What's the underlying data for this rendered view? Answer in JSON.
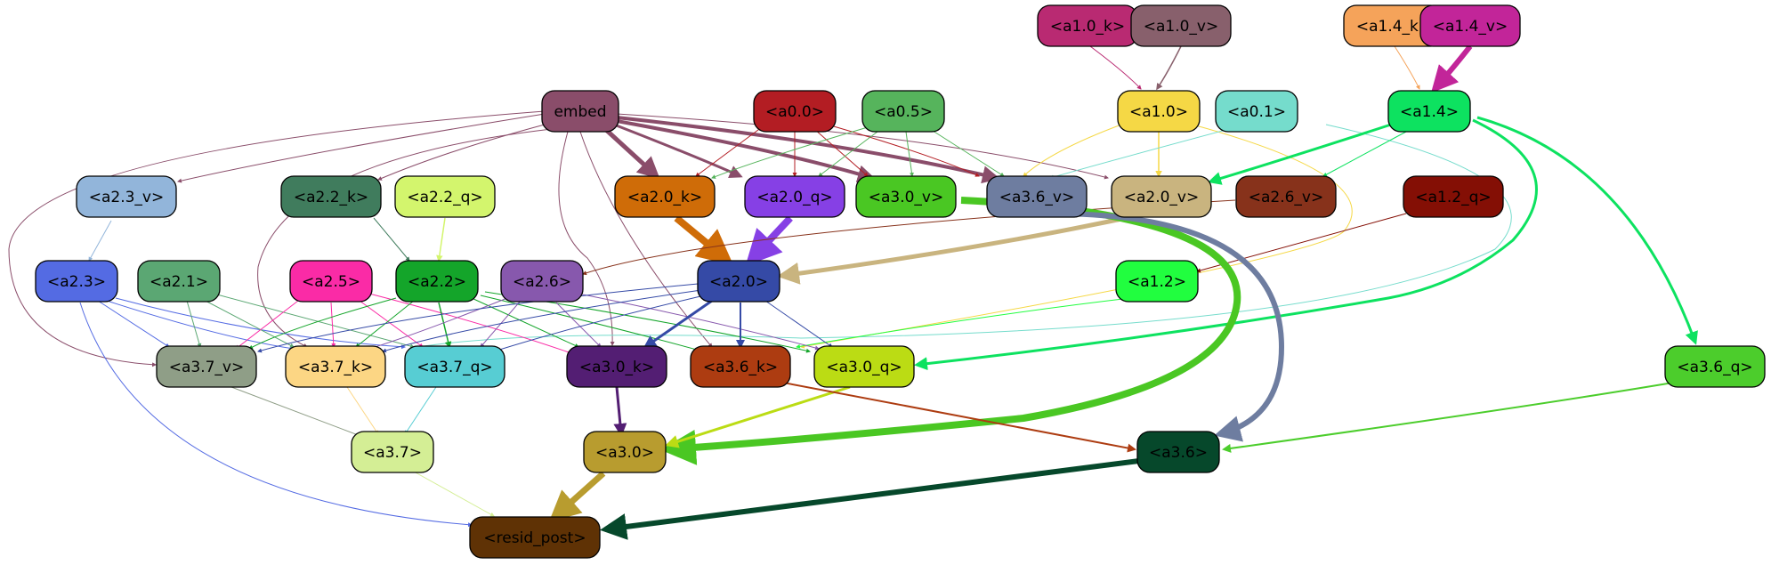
{
  "title": "",
  "nodes": [
    {
      "id": "a1_0_k",
      "label": "<a1.0_k>",
      "color": "#b92a72"
    },
    {
      "id": "a1_0_v",
      "label": "<a1.0_v>",
      "color": "#88606c"
    },
    {
      "id": "a1_4_k",
      "label": "<a1.4_k>",
      "color": "#f5a35a"
    },
    {
      "id": "a1_4_v",
      "label": "<a1.4_v>",
      "color": "#c22599"
    },
    {
      "id": "embed",
      "label": "embed",
      "color": "#8a4d6a"
    },
    {
      "id": "a0_0",
      "label": "<a0.0>",
      "color": "#b31d23"
    },
    {
      "id": "a0_5",
      "label": "<a0.5>",
      "color": "#56b45c"
    },
    {
      "id": "a1_0",
      "label": "<a1.0>",
      "color": "#f5d845"
    },
    {
      "id": "a0_1",
      "label": "<a0.1>",
      "color": "#75dccc"
    },
    {
      "id": "a1_4",
      "label": "<a1.4>",
      "color": "#0de260"
    },
    {
      "id": "a2_3_v",
      "label": "<a2.3_v>",
      "color": "#92b5da"
    },
    {
      "id": "a2_2_k",
      "label": "<a2.2_k>",
      "color": "#407c5d"
    },
    {
      "id": "a2_2_q",
      "label": "<a2.2_q>",
      "color": "#d3f56d"
    },
    {
      "id": "a2_0_k",
      "label": "<a2.0_k>",
      "color": "#cf6c08"
    },
    {
      "id": "a2_0_q",
      "label": "<a2.0_q>",
      "color": "#8640e5"
    },
    {
      "id": "a3_0_v",
      "label": "<a3.0_v>",
      "color": "#4ac723"
    },
    {
      "id": "a3_6_v",
      "label": "<a3.6_v>",
      "color": "#6e7da0"
    },
    {
      "id": "a2_0_v",
      "label": "<a2.0_v>",
      "color": "#c9b47f"
    },
    {
      "id": "a2_6_v",
      "label": "<a2.6_v>",
      "color": "#87321b"
    },
    {
      "id": "a1_2_q",
      "label": "<a1.2_q>",
      "color": "#840f05"
    },
    {
      "id": "a2_3",
      "label": "<a2.3>",
      "color": "#546be3"
    },
    {
      "id": "a2_1",
      "label": "<a2.1>",
      "color": "#5ba773"
    },
    {
      "id": "a2_5",
      "label": "<a2.5>",
      "color": "#fa2ba6"
    },
    {
      "id": "a2_2",
      "label": "<a2.2>",
      "color": "#14a52a"
    },
    {
      "id": "a2_6",
      "label": "<a2.6>",
      "color": "#8758ad"
    },
    {
      "id": "a2_0",
      "label": "<a2.0>",
      "color": "#354aa6"
    },
    {
      "id": "a1_2",
      "label": "<a1.2>",
      "color": "#21fe3f"
    },
    {
      "id": "a3_7_v",
      "label": "<a3.7_v>",
      "color": "#8f9e87"
    },
    {
      "id": "a3_7_k",
      "label": "<a3.7_k>",
      "color": "#fcd684"
    },
    {
      "id": "a3_7_q",
      "label": "<a3.7_q>",
      "color": "#57cdd3"
    },
    {
      "id": "a3_0_k",
      "label": "<a3.0_k>",
      "color": "#531e73"
    },
    {
      "id": "a3_6_k",
      "label": "<a3.6_k>",
      "color": "#ad3c11"
    },
    {
      "id": "a3_0_q",
      "label": "<a3.0_q>",
      "color": "#bbdc14"
    },
    {
      "id": "a3_6_q",
      "label": "<a3.6_q>",
      "color": "#4ccd2c"
    },
    {
      "id": "a3_7",
      "label": "<a3.7>",
      "color": "#d4ee95"
    },
    {
      "id": "a3_0",
      "label": "<a3.0>",
      "color": "#b89c2f"
    },
    {
      "id": "a3_6",
      "label": "<a3.6>",
      "color": "#06482b"
    },
    {
      "id": "resid_post",
      "label": "<resid_post>",
      "color": "#5f3205"
    }
  ]
}
